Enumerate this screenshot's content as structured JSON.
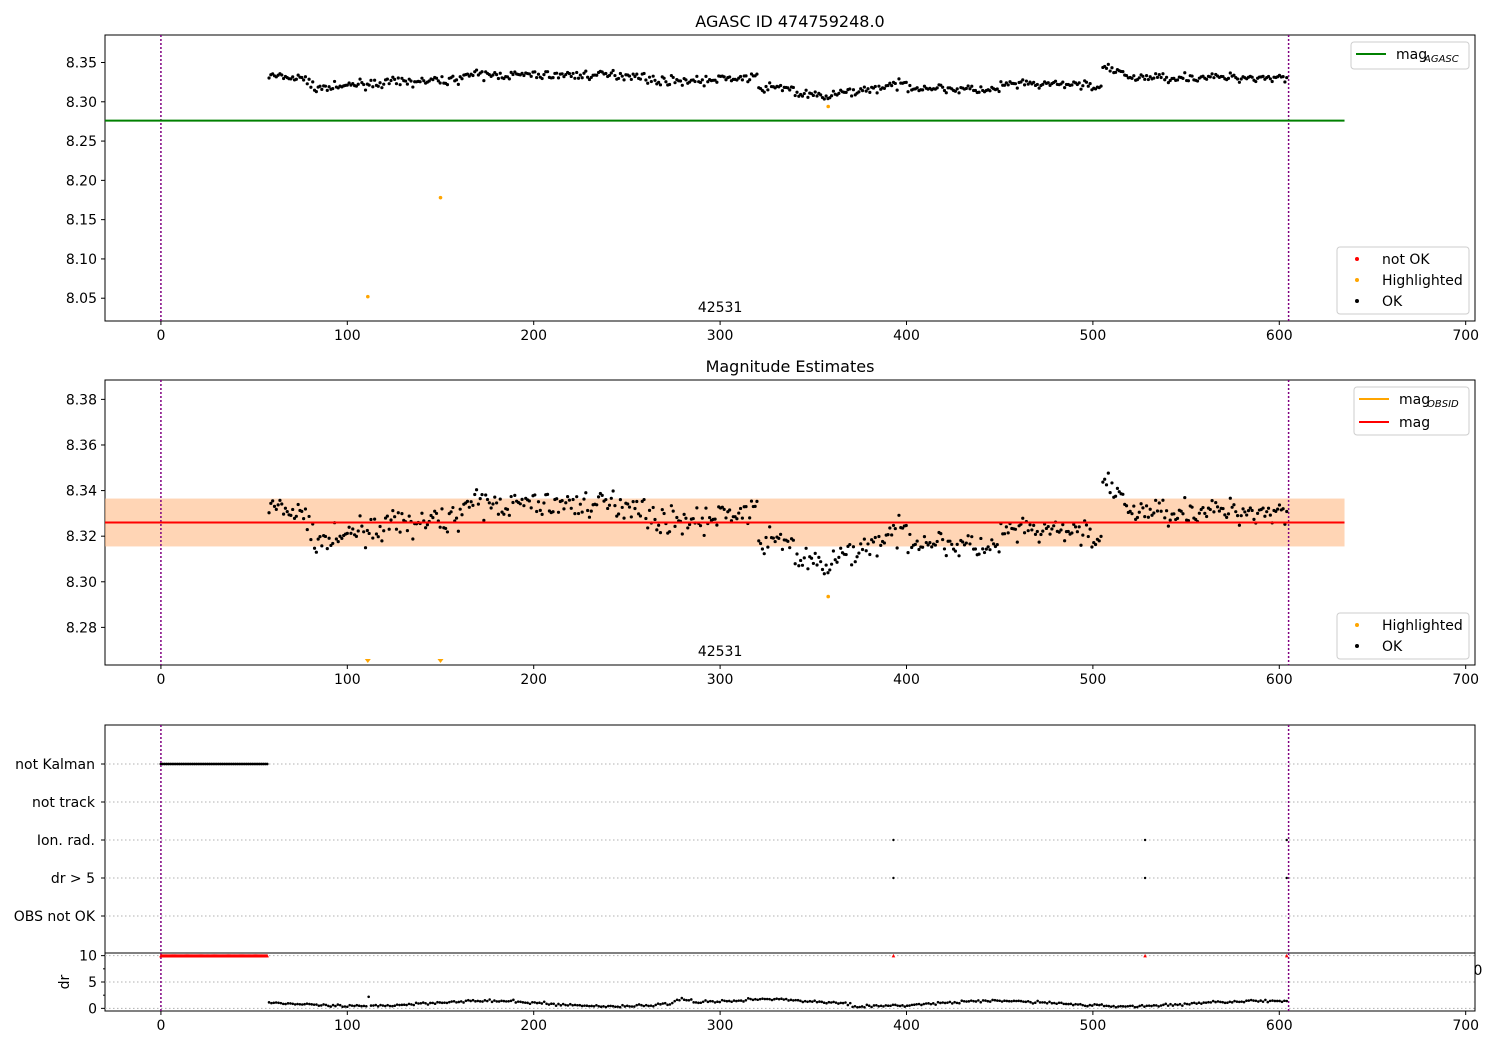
{
  "chart_data": [
    {
      "type": "scatter",
      "title": "AGASC ID 474759248.0",
      "xlim": [
        -30,
        705
      ],
      "ylim": [
        8.021,
        8.385
      ],
      "xticks": [
        0,
        100,
        200,
        300,
        400,
        500,
        600,
        700
      ],
      "yticks": [
        8.05,
        8.1,
        8.15,
        8.2,
        8.25,
        8.3,
        8.35
      ],
      "obsid_label": "42531",
      "obsid_label_x": 300,
      "vlines": [
        0,
        605
      ],
      "hlines": [
        {
          "name": "mag_AGASC",
          "y": 8.276,
          "x0": -30,
          "x1": 635,
          "color": "#008000"
        }
      ],
      "ok_points": {
        "x_start": 58,
        "x_end": 604,
        "count": 560,
        "color": "#000000"
      },
      "highlighted_points": {
        "x": [
          111,
          150,
          358
        ],
        "y": [
          8.052,
          8.178,
          8.294
        ],
        "color": "#ffa500"
      },
      "legend_lines": [
        {
          "label": "mag",
          "sub": "AGASC",
          "color": "#008000"
        }
      ],
      "legend_points": [
        {
          "label": "not OK",
          "color": "#ff0000"
        },
        {
          "label": "Highlighted",
          "color": "#ffa500"
        },
        {
          "label": "OK",
          "color": "#000000"
        }
      ]
    },
    {
      "type": "scatter",
      "title": "Magnitude Estimates",
      "xlim": [
        -30,
        705
      ],
      "ylim": [
        8.2635,
        8.3885
      ],
      "xticks": [
        0,
        100,
        200,
        300,
        400,
        500,
        600,
        700
      ],
      "yticks": [
        8.28,
        8.3,
        8.32,
        8.34,
        8.36,
        8.38
      ],
      "obsid_label": "42531",
      "obsid_label_x": 300,
      "vlines": [
        0,
        605
      ],
      "mag": 8.326,
      "mag_band": [
        8.3155,
        8.3365
      ],
      "mag_obsid_band": [
        8.3155,
        8.3365
      ],
      "band_x": [
        -30,
        635
      ],
      "ok_points": {
        "x_start": 58,
        "x_end": 604,
        "count": 560,
        "color": "#000000"
      },
      "highlighted_points": {
        "x": [
          358
        ],
        "y": [
          8.2935
        ],
        "color": "#ffa500"
      },
      "offscale_markers": {
        "x": [
          111,
          150
        ],
        "color": "#ffa500"
      },
      "legend_lines": [
        {
          "label": "mag",
          "sub": "OBSID",
          "color": "#ffa500"
        },
        {
          "label": "mag",
          "sub": "",
          "color": "#ff0000"
        }
      ],
      "legend_points": [
        {
          "label": "Highlighted",
          "color": "#ffa500"
        },
        {
          "label": "OK",
          "color": "#000000"
        }
      ]
    },
    {
      "type": "scatter",
      "xlim": [
        -30,
        705
      ],
      "xticks": [
        0,
        100,
        200,
        300,
        400,
        500,
        600,
        700
      ],
      "vlines": [
        0,
        605
      ],
      "flag_rows": [
        {
          "label": "not Kalman",
          "points": {
            "x_start": 0,
            "x_end": 57,
            "step": 1
          }
        },
        {
          "label": "not track",
          "points": {}
        },
        {
          "label": "Ion. rad.",
          "points": {
            "x": [
              393,
              528,
              604
            ]
          }
        },
        {
          "label": "dr > 5",
          "points": {
            "x": [
              393,
              528,
              604
            ]
          }
        },
        {
          "label": "OBS not OK",
          "points": {}
        }
      ],
      "dr": {
        "ylabel": "dr",
        "yticks": [
          0,
          5,
          10
        ],
        "ylim": [
          -0.5,
          10.5
        ],
        "clipped_value": 10,
        "clipped_x": {
          "x_start": 0,
          "x_end": 57,
          "extra": [
            393,
            528,
            604
          ]
        },
        "clipped_color": "#ff0000",
        "series": {
          "x_start": 58,
          "x_end": 604,
          "count": 430,
          "color": "#000000"
        },
        "stray_tick": "0"
      }
    }
  ]
}
